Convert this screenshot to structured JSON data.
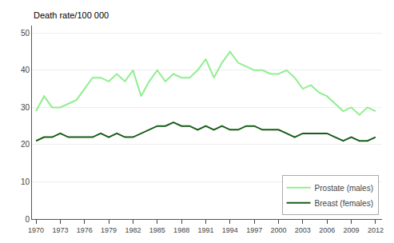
{
  "chart_data": {
    "type": "line",
    "ylabel": "Death rate/100 000",
    "x": [
      1970,
      1971,
      1972,
      1973,
      1974,
      1975,
      1976,
      1977,
      1978,
      1979,
      1980,
      1981,
      1982,
      1983,
      1984,
      1985,
      1986,
      1987,
      1988,
      1989,
      1990,
      1991,
      1992,
      1993,
      1994,
      1995,
      1996,
      1997,
      1998,
      1999,
      2000,
      2001,
      2002,
      2003,
      2004,
      2005,
      2006,
      2007,
      2008,
      2009,
      2010,
      2011,
      2012
    ],
    "series": [
      {
        "name": "Prostate (males)",
        "color": "#90EE90",
        "values": [
          29,
          33,
          30,
          30,
          31,
          32,
          35,
          38,
          38,
          37,
          39,
          37,
          40,
          33,
          37,
          40,
          37,
          39,
          38,
          38,
          40,
          43,
          38,
          42,
          45,
          42,
          41,
          40,
          40,
          39,
          39,
          40,
          38,
          35,
          36,
          34,
          33,
          31,
          29,
          30,
          28,
          30,
          29
        ]
      },
      {
        "name": "Breast (females)",
        "color": "#1a5c1a",
        "values": [
          21,
          22,
          22,
          23,
          22,
          22,
          22,
          22,
          23,
          22,
          23,
          22,
          22,
          23,
          24,
          25,
          25,
          26,
          25,
          25,
          24,
          25,
          24,
          25,
          24,
          24,
          25,
          25,
          24,
          24,
          24,
          23,
          22,
          23,
          23,
          23,
          23,
          22,
          21,
          22,
          21,
          21,
          22
        ]
      }
    ],
    "xlim": [
      1969.5,
      2012.8
    ],
    "xticks": [
      1970,
      1973,
      1976,
      1979,
      1982,
      1985,
      1988,
      1991,
      1994,
      1997,
      2000,
      2003,
      2006,
      2009,
      2012
    ],
    "ylim": [
      0,
      52
    ],
    "yticks": [
      0,
      10,
      20,
      30,
      40,
      50
    ],
    "grid": "y",
    "legend": "lower right"
  }
}
